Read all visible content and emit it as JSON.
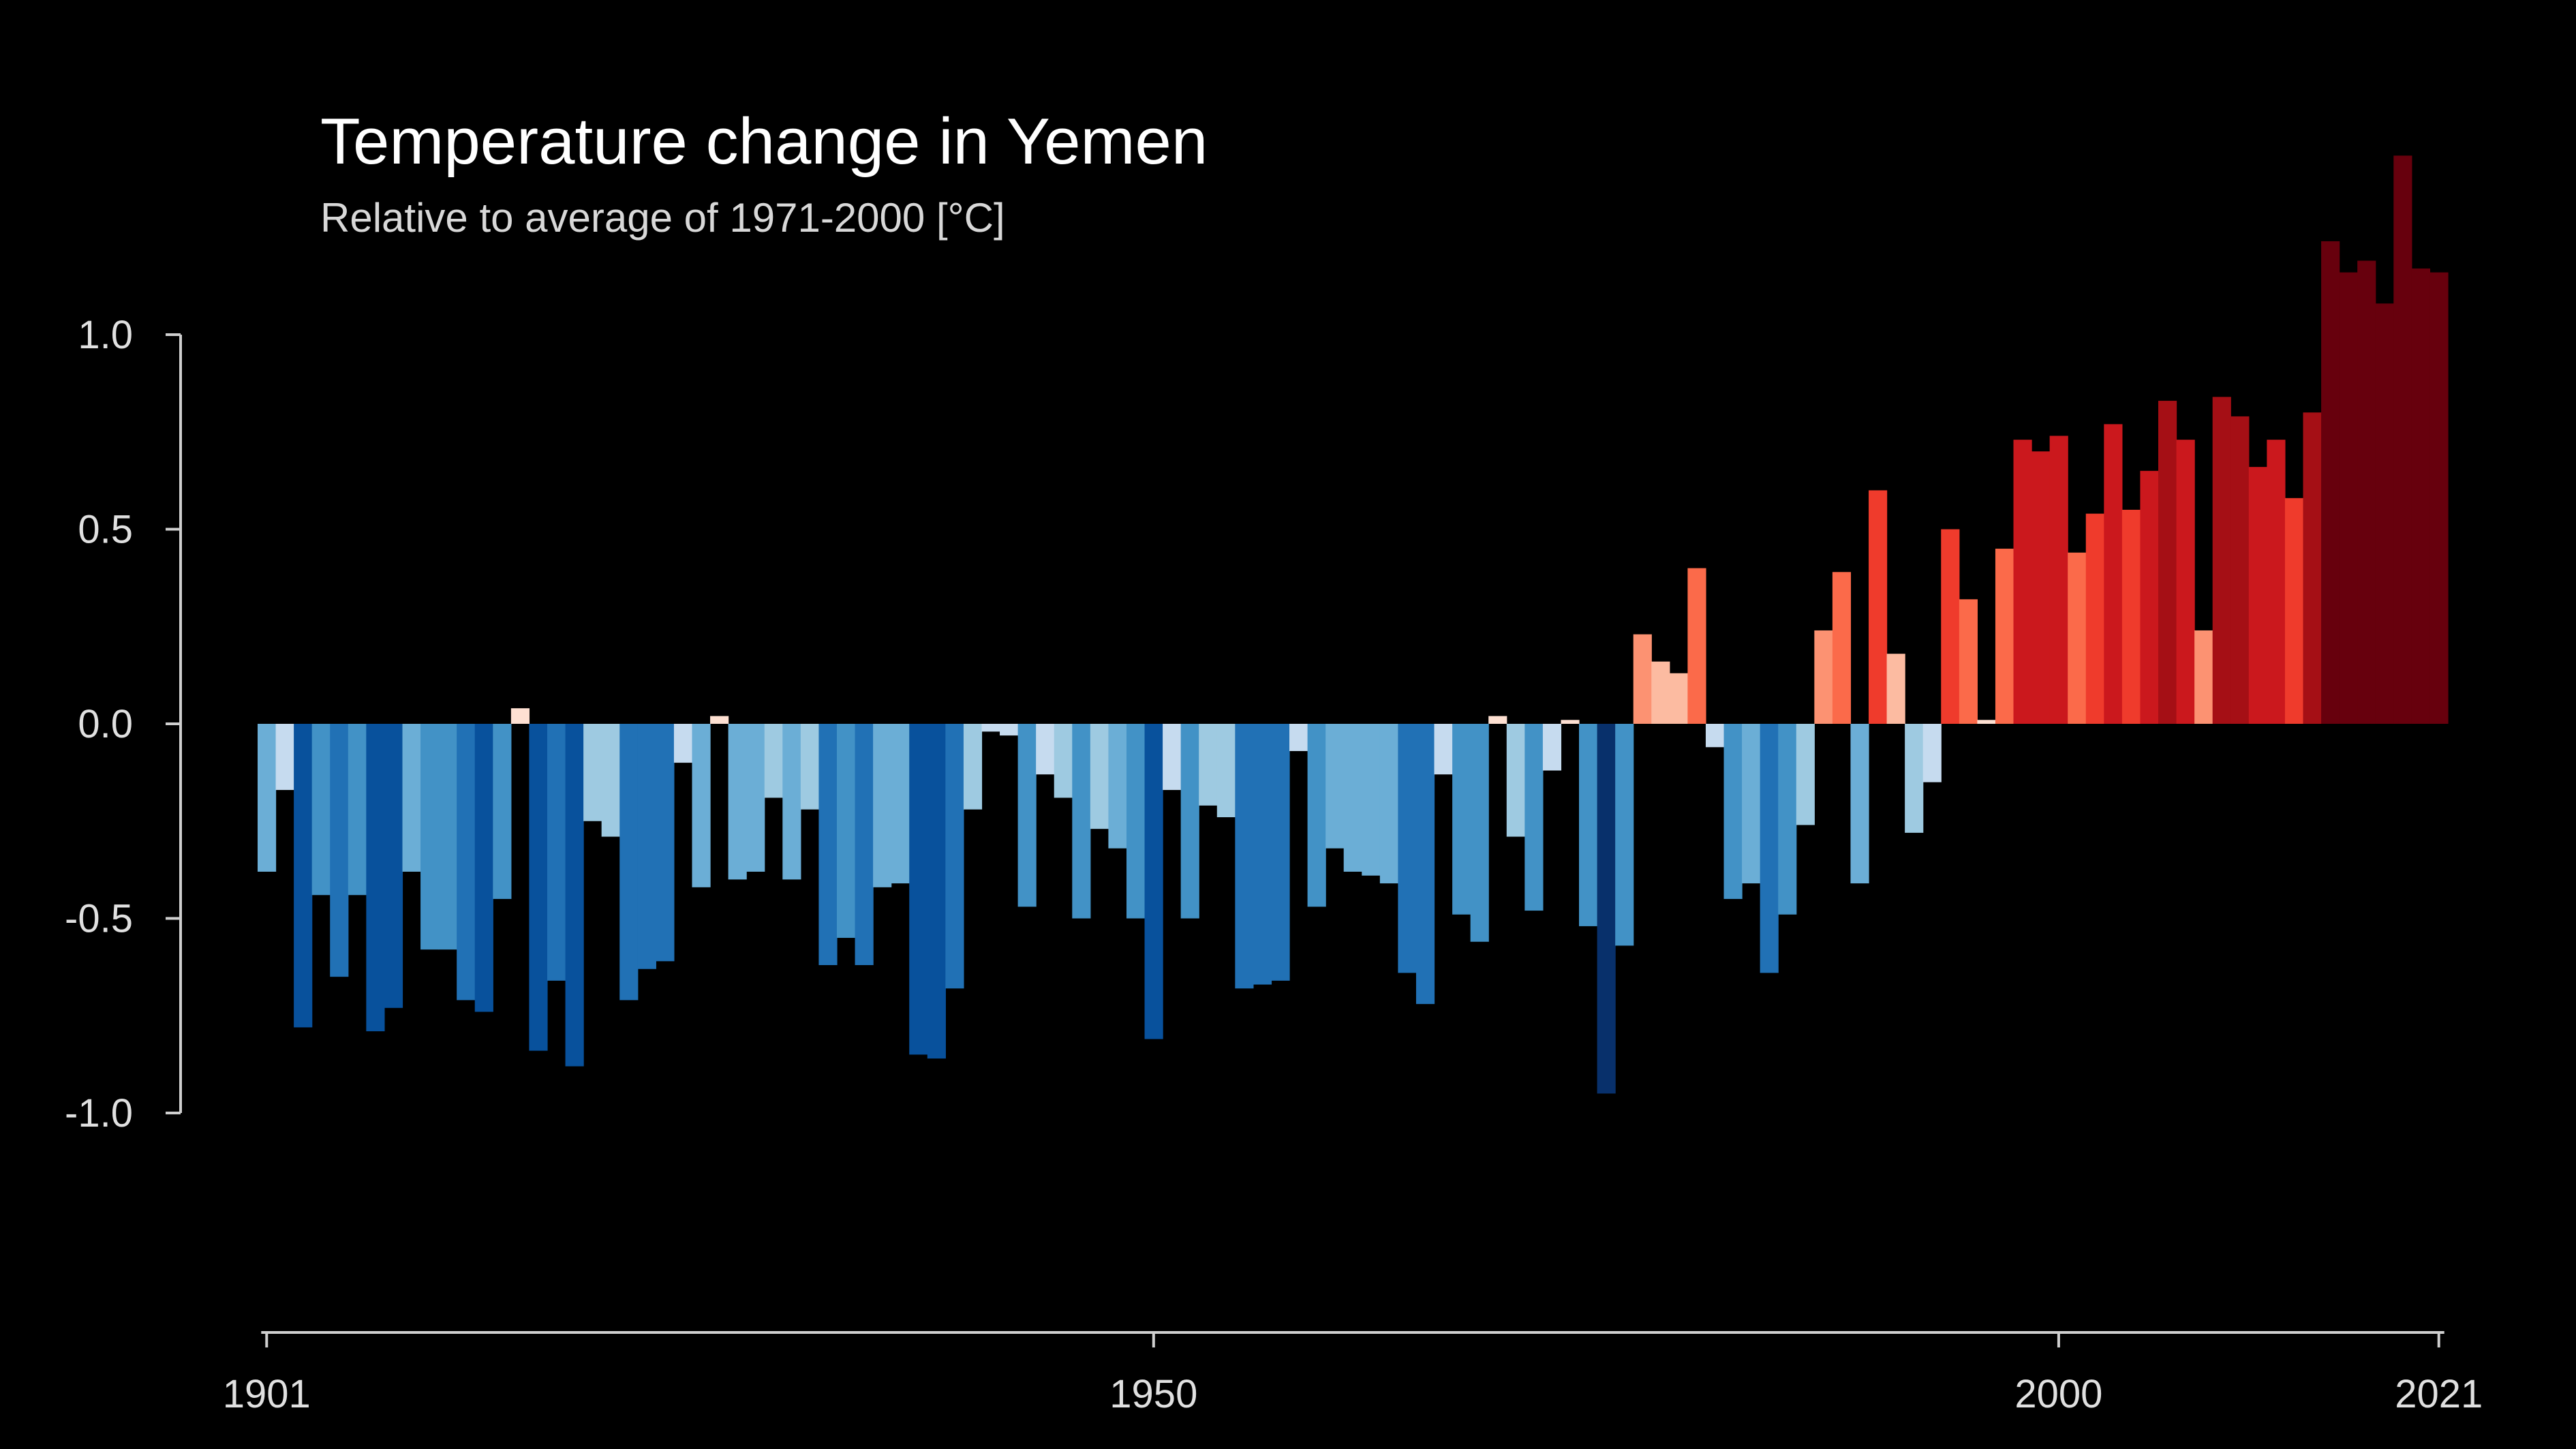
{
  "chart_data": {
    "type": "bar",
    "title": "Temperature change in Yemen",
    "subtitle": "Relative to average of 1971-2000  [°C]",
    "xlabel": "",
    "ylabel": "",
    "x_start": 1901,
    "x_end": 2021,
    "ylim": [
      -1.2,
      1.5
    ],
    "grid": false,
    "legend": "none",
    "y_ticks": [
      {
        "value": 1.0,
        "label": "1.0"
      },
      {
        "value": 0.5,
        "label": "0.5"
      },
      {
        "value": 0.0,
        "label": "0.0"
      },
      {
        "value": -0.5,
        "label": "-0.5"
      },
      {
        "value": -1.0,
        "label": "-1.0"
      }
    ],
    "x_ticks": [
      {
        "value": 1901,
        "label": "1901"
      },
      {
        "value": 1950,
        "label": "1950"
      },
      {
        "value": 2000,
        "label": "2000"
      },
      {
        "value": 2021,
        "label": "2021"
      }
    ],
    "color_scale": {
      "negative": [
        "#c6dbef",
        "#9ecae1",
        "#6baed6",
        "#4292c6",
        "#2171b5",
        "#08519c",
        "#08306b"
      ],
      "positive": [
        "#fee0d2",
        "#fcbba1",
        "#fc9272",
        "#fb6a4a",
        "#ef3b2c",
        "#cb181d",
        "#a50f15",
        "#67000d"
      ]
    },
    "years": [
      1901,
      1902,
      1903,
      1904,
      1905,
      1906,
      1907,
      1908,
      1909,
      1910,
      1911,
      1912,
      1913,
      1914,
      1915,
      1916,
      1917,
      1918,
      1919,
      1920,
      1921,
      1922,
      1923,
      1924,
      1925,
      1926,
      1927,
      1928,
      1929,
      1930,
      1931,
      1932,
      1933,
      1934,
      1935,
      1936,
      1937,
      1938,
      1939,
      1940,
      1941,
      1942,
      1943,
      1944,
      1945,
      1946,
      1947,
      1948,
      1949,
      1950,
      1951,
      1952,
      1953,
      1954,
      1955,
      1956,
      1957,
      1958,
      1959,
      1960,
      1961,
      1962,
      1963,
      1964,
      1965,
      1966,
      1967,
      1968,
      1969,
      1970,
      1971,
      1972,
      1973,
      1974,
      1975,
      1976,
      1977,
      1978,
      1979,
      1980,
      1981,
      1982,
      1983,
      1984,
      1985,
      1986,
      1987,
      1988,
      1989,
      1990,
      1991,
      1992,
      1993,
      1994,
      1995,
      1996,
      1997,
      1998,
      1999,
      2000,
      2001,
      2002,
      2003,
      2004,
      2005,
      2006,
      2007,
      2008,
      2009,
      2010,
      2011,
      2012,
      2013,
      2014,
      2015,
      2016,
      2017,
      2018,
      2019,
      2020,
      2021
    ],
    "values": [
      -0.38,
      -0.17,
      -0.78,
      -0.44,
      -0.65,
      -0.44,
      -0.79,
      -0.73,
      -0.38,
      -0.58,
      -0.58,
      -0.71,
      -0.74,
      -0.45,
      0.04,
      -0.84,
      -0.66,
      -0.88,
      -0.25,
      -0.29,
      -0.71,
      -0.63,
      -0.61,
      -0.1,
      -0.42,
      0.02,
      -0.4,
      -0.38,
      -0.19,
      -0.4,
      -0.22,
      -0.62,
      -0.55,
      -0.62,
      -0.42,
      -0.41,
      -0.85,
      -0.86,
      -0.68,
      -0.22,
      -0.02,
      -0.03,
      -0.47,
      -0.13,
      -0.19,
      -0.5,
      -0.27,
      -0.32,
      -0.5,
      -0.81,
      -0.17,
      -0.5,
      -0.21,
      -0.24,
      -0.68,
      -0.67,
      -0.66,
      -0.07,
      -0.47,
      -0.32,
      -0.38,
      -0.39,
      -0.41,
      -0.64,
      -0.72,
      -0.13,
      -0.49,
      -0.56,
      0.02,
      -0.29,
      -0.48,
      -0.12,
      0.01,
      -0.52,
      -0.95,
      -0.57,
      0.23,
      0.16,
      0.13,
      0.4,
      -0.06,
      -0.45,
      -0.41,
      -0.64,
      -0.49,
      -0.26,
      0.24,
      0.39,
      -0.41,
      0.6,
      0.18,
      -0.28,
      -0.15,
      0.5,
      0.32,
      0.01,
      0.45,
      0.73,
      0.7,
      0.74,
      0.44,
      0.54,
      0.77,
      0.55,
      0.65,
      0.83,
      0.73,
      0.24,
      0.84,
      0.79,
      0.66,
      0.73,
      0.58,
      0.8,
      1.24,
      1.16,
      1.19,
      1.08,
      1.46,
      1.17,
      1.16
    ]
  }
}
